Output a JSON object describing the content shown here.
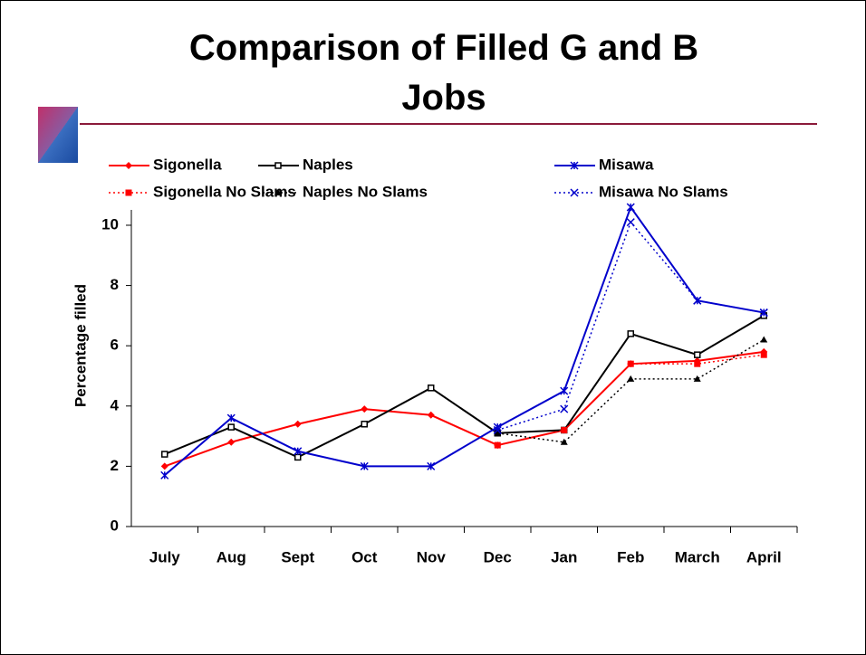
{
  "chart_data": {
    "type": "line",
    "title": "Comparison of Filled G and B Jobs",
    "y_label": "Percentage filled",
    "categories": [
      "July",
      "Aug",
      "Sept",
      "Oct",
      "Nov",
      "Dec",
      "Jan",
      "Feb",
      "March",
      "April"
    ],
    "ylim": [
      0,
      10.6
    ],
    "yticks": [
      0,
      2,
      4,
      6,
      8,
      10
    ],
    "legend": "top",
    "series": [
      {
        "name": "Sigonella",
        "color": "#ff0000",
        "style": "solid",
        "marker": "diamond",
        "values": [
          2.0,
          2.8,
          3.4,
          3.9,
          3.7,
          2.7,
          3.2,
          5.4,
          5.5,
          5.8
        ]
      },
      {
        "name": "Naples",
        "color": "#000000",
        "style": "solid",
        "marker": "square-open",
        "values": [
          2.4,
          3.3,
          2.3,
          3.4,
          4.6,
          3.1,
          3.2,
          6.4,
          5.7,
          7.0
        ]
      },
      {
        "name": "Misawa",
        "color": "#0000cc",
        "style": "solid",
        "marker": "star",
        "values": [
          1.7,
          3.6,
          2.5,
          2.0,
          2.0,
          3.3,
          4.5,
          10.6,
          7.5,
          7.1
        ]
      },
      {
        "name": "Sigonella No Slams",
        "color": "#ff0000",
        "style": "dotted",
        "marker": "square",
        "values": [
          null,
          null,
          null,
          null,
          null,
          2.7,
          3.2,
          5.4,
          5.4,
          5.7
        ]
      },
      {
        "name": "Naples No Slams",
        "color": "#000000",
        "style": "dotted",
        "marker": "triangle",
        "values": [
          null,
          null,
          null,
          null,
          null,
          3.1,
          2.8,
          4.9,
          4.9,
          6.2
        ]
      },
      {
        "name": "Misawa No Slams",
        "color": "#0000cc",
        "style": "dotted",
        "marker": "x",
        "values": [
          null,
          null,
          null,
          null,
          null,
          3.2,
          3.9,
          10.1,
          7.5,
          7.1
        ]
      }
    ]
  }
}
